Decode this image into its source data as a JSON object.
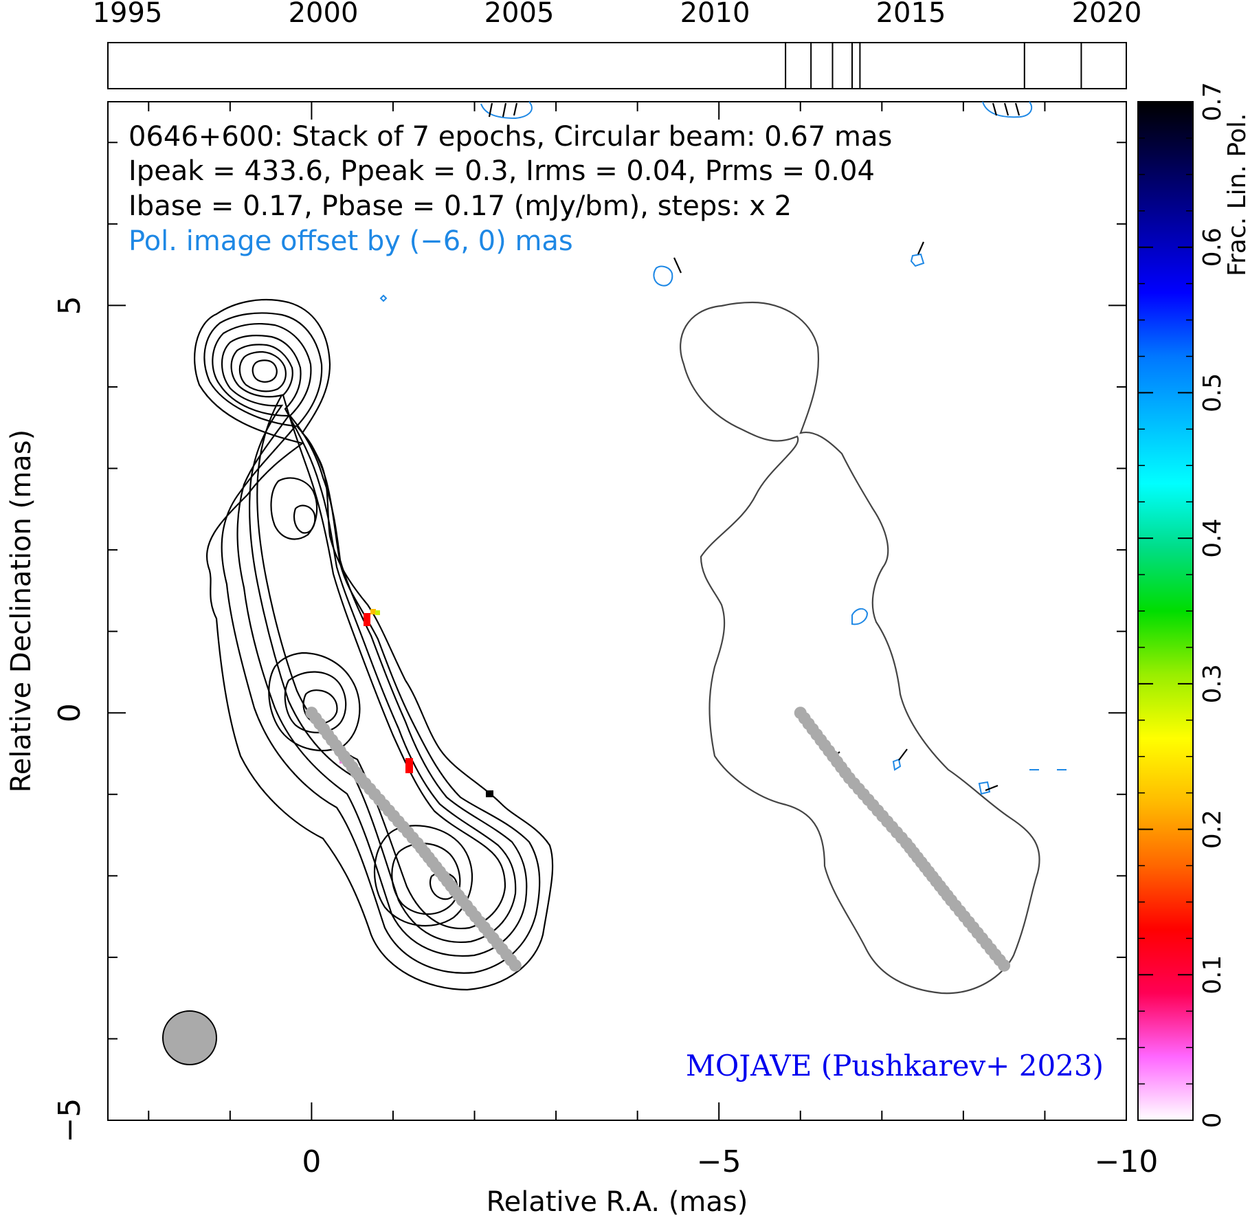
{
  "chart_data": {
    "type": "contour",
    "source_name": "0646+600",
    "header_lines": [
      "0646+600: Stack of 7 epochs, Circular beam: 0.67 mas",
      "Ipeak = 433.6, Ppeak = 0.3, Irms = 0.04, Prms = 0.04",
      "Ibase = 0.17, Pbase = 0.17 (mJy/bm), steps: x 2"
    ],
    "offset_note": "Pol. image offset by (−6, 0) mas",
    "credit": "MOJAVE (Pushkarev+ 2023)",
    "xlabel": "Relative R.A. (mas)",
    "ylabel": "Relative Declination (mas)",
    "xlim": [
      2.5,
      -10
    ],
    "ylim": [
      -5,
      7.5
    ],
    "x_ticks": [
      0,
      -5,
      -10
    ],
    "x_tick_labels": [
      "0",
      "−5",
      "−10"
    ],
    "y_ticks": [
      5,
      0,
      -5
    ],
    "y_tick_labels": [
      "5",
      "0",
      "−5"
    ],
    "beam_diameter_mas": 0.67,
    "epoch_axis": {
      "range": [
        1994.5,
        2020.5
      ],
      "tick_labels": [
        "1995",
        "2000",
        "2005",
        "2010",
        "2015",
        "2020"
      ],
      "tick_years": [
        1995,
        2000,
        2005,
        2010,
        2015,
        2020
      ],
      "epochs": [
        2011.8,
        2012.45,
        2013.0,
        2013.5,
        2013.7,
        2017.9,
        2019.35
      ]
    },
    "colorbar": {
      "label": "Frac. Lin. Pol.",
      "range": [
        0,
        0.7
      ],
      "tick_values": [
        0,
        0.1,
        0.2,
        0.3,
        0.4,
        0.5,
        0.6,
        0.7
      ],
      "tick_labels": [
        "0",
        "0.1",
        "0.2",
        "0.3",
        "0.4",
        "0.5",
        "0.6",
        "0.7"
      ],
      "colors": [
        "#ffffff",
        "#ff66ff",
        "#ff0055",
        "#ff0000",
        "#ff6600",
        "#ffbb00",
        "#ffff00",
        "#99ee00",
        "#00dd00",
        "#00dd88",
        "#00ffff",
        "#00bbff",
        "#0077ff",
        "#0000ff",
        "#0000aa",
        "#000055",
        "#000000"
      ]
    },
    "jet_ridge": {
      "color": "#aaaaaa",
      "points": [
        [
          0.0,
          0.0
        ],
        [
          -0.6,
          -0.8
        ],
        [
          -1.3,
          -1.6
        ],
        [
          -1.85,
          -2.3
        ],
        [
          -2.5,
          -3.1
        ]
      ]
    }
  }
}
